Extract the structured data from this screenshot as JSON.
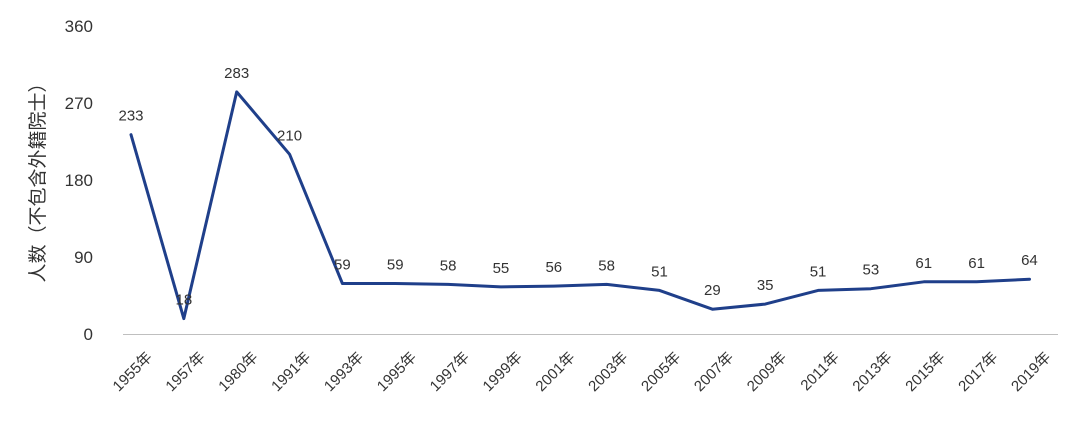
{
  "chart_data": {
    "type": "line",
    "ylabel": "人数（不包含外籍院士）",
    "xlabel": "",
    "ylim": [
      0,
      360
    ],
    "yticks": [
      "0",
      "90",
      "180",
      "270",
      "360"
    ],
    "grid": false,
    "categories": [
      "1955年",
      "1957年",
      "1980年",
      "1991年",
      "1993年",
      "1995年",
      "1997年",
      "1999年",
      "2001年",
      "2003年",
      "2005年",
      "2007年",
      "2009年",
      "2011年",
      "2013年",
      "2015年",
      "2017年",
      "2019年"
    ],
    "series": [
      {
        "values": [
          233,
          18,
          283,
          210,
          59,
          59,
          58,
          55,
          56,
          58,
          51,
          29,
          35,
          51,
          53,
          61,
          61,
          64
        ],
        "color": "#1f3f8a"
      }
    ],
    "data_labels": [
      "233",
      "18",
      "283",
      "210",
      "59",
      "59",
      "58",
      "55",
      "56",
      "58",
      "51",
      "29",
      "35",
      "51",
      "53",
      "61",
      "61",
      "64"
    ]
  }
}
